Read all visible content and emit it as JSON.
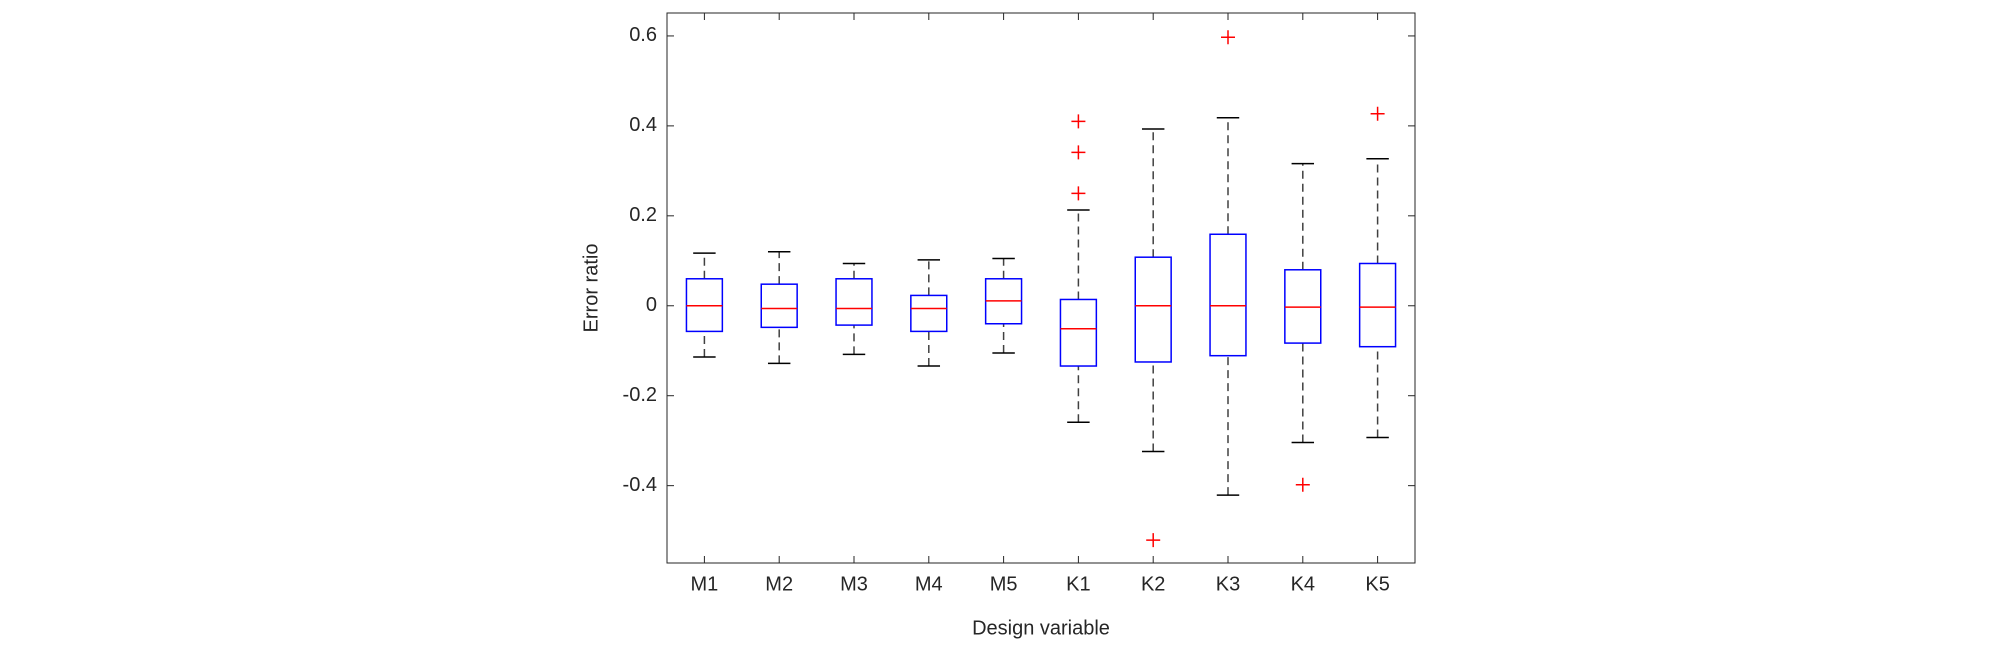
{
  "chart_data": {
    "type": "box",
    "x_label": "Design variable",
    "y_label": "Error ratio",
    "categories": [
      "M1",
      "M2",
      "M3",
      "M4",
      "M5",
      "K1",
      "K2",
      "K3",
      "K4",
      "K5"
    ],
    "boxes": [
      {
        "low": -0.114,
        "q1": -0.057,
        "median": 0,
        "q3": 0.06,
        "high": 0.117,
        "outliers": []
      },
      {
        "low": -0.128,
        "q1": -0.048,
        "median": -0.006,
        "q3": 0.048,
        "high": 0.12,
        "outliers": []
      },
      {
        "low": -0.108,
        "q1": -0.043,
        "median": -0.006,
        "q3": 0.06,
        "high": 0.094,
        "outliers": []
      },
      {
        "low": -0.134,
        "q1": -0.057,
        "median": -0.006,
        "q3": 0.023,
        "high": 0.102,
        "outliers": []
      },
      {
        "low": -0.105,
        "q1": -0.04,
        "median": 0.011,
        "q3": 0.06,
        "high": 0.105,
        "outliers": []
      },
      {
        "low": -0.259,
        "q1": -0.134,
        "median": -0.051,
        "q3": 0.014,
        "high": 0.213,
        "outliers": [
          0.41,
          0.341,
          0.25
        ]
      },
      {
        "low": -0.324,
        "q1": -0.125,
        "median": 0,
        "q3": 0.108,
        "high": 0.393,
        "outliers": [
          -0.521
        ]
      },
      {
        "low": -0.421,
        "q1": -0.111,
        "median": 0,
        "q3": 0.159,
        "high": 0.418,
        "outliers": [
          0.597
        ]
      },
      {
        "low": -0.304,
        "q1": -0.083,
        "median": -0.003,
        "q3": 0.08,
        "high": 0.316,
        "outliers": [
          -0.398
        ]
      },
      {
        "low": -0.293,
        "q1": -0.091,
        "median": -0.003,
        "q3": 0.094,
        "high": 0.327,
        "outliers": [
          0.427
        ]
      }
    ],
    "box_color": "#0000ff",
    "median_color": "#ff0000",
    "whisker_color": "#000000",
    "outlier_color": "#ff0000",
    "ylim": [
      -0.572,
      0.651
    ],
    "yticks": [
      -0.4,
      -0.2,
      0,
      0.2,
      0.4,
      0.6
    ],
    "grid": false
  }
}
